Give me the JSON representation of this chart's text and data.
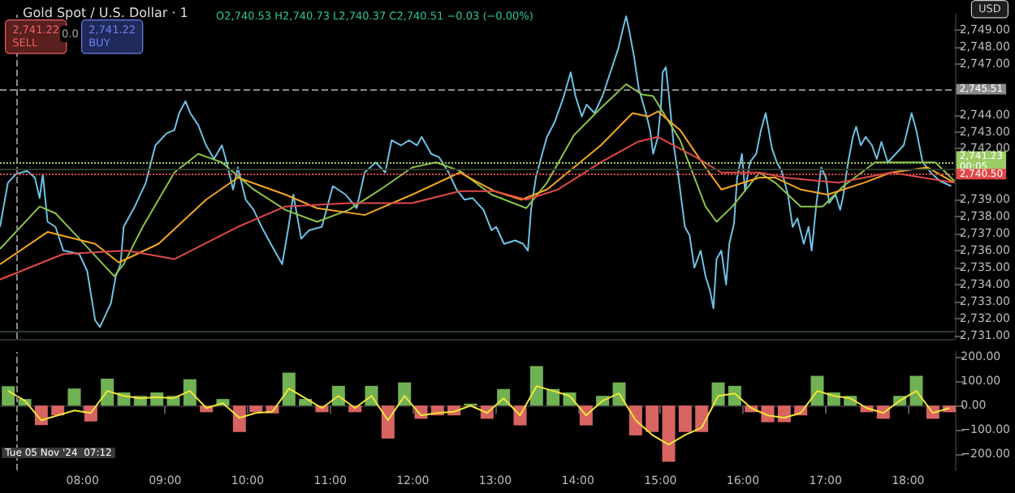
{
  "chart_data": [
    {
      "type": "line",
      "title": "Gold Spot / U.S. Dollar · 1",
      "annotations": [
        "O2,740.53 H2,740.73 L2,740.37 C2,740.51 −0.03 (−0.00%)",
        "2,741.22\nSELL",
        "0.0",
        "2,741.22\nBUY",
        "USD"
      ],
      "xlim": [
        7,
        18.58
      ],
      "ylim": [
        2730.8,
        2749.9
      ],
      "yticks": [
        {
          "value": 2731,
          "label": "2,731.00"
        },
        {
          "value": 2732,
          "label": "2,732.00"
        },
        {
          "value": 2733,
          "label": "2,733.00"
        },
        {
          "value": 2734,
          "label": "2,734.00"
        },
        {
          "value": 2735,
          "label": "2,735.00"
        },
        {
          "value": 2736,
          "label": "2,736.00"
        },
        {
          "value": 2737,
          "label": "2,737.00"
        },
        {
          "value": 2738,
          "label": "2,738.00"
        },
        {
          "value": 2739,
          "label": "2,739.00"
        },
        {
          "value": 2742,
          "label": "2,742.00"
        },
        {
          "value": 2743,
          "label": "2,743.00"
        },
        {
          "value": 2744,
          "label": "2,744.00"
        },
        {
          "value": 2747,
          "label": "2,747.00"
        },
        {
          "value": 2748,
          "label": "2,748.00"
        },
        {
          "value": 2749,
          "label": "2,749.00"
        }
      ],
      "tick_labels": "y",
      "ref_lines": [
        {
          "axis": "y",
          "value": 2745.51,
          "label": "2,745.51",
          "color": "#8a8a8a",
          "line_style": "dashed"
        },
        {
          "axis": "x",
          "value": 7.2,
          "label": null,
          "color": "#8a8a8a",
          "line_style": "dashed"
        },
        {
          "axis": "y",
          "value": 2740.8,
          "label": null,
          "color": "#2c3a2c",
          "line_style": "solid"
        },
        {
          "axis": "y",
          "value": 2731.3,
          "label": null,
          "color": "#2c3a2c",
          "line_style": "solid"
        },
        {
          "axis": "y",
          "value": 2741.23,
          "label": "2,741.23\n00:05",
          "color": "#9ccc65",
          "line_style": "dotted"
        },
        {
          "axis": "y",
          "value": 2740.5,
          "label": "2,740.50",
          "color": "#e04848",
          "line_style": "dotted"
        }
      ],
      "series": [
        {
          "color": "#6ec1e4",
          "x": [
            7.0,
            7.096,
            7.192,
            7.327,
            7.423,
            7.481,
            7.519,
            7.577,
            7.673,
            7.769,
            7.962,
            8.058,
            8.154,
            8.212,
            8.288,
            8.346,
            8.404,
            8.462,
            8.5,
            8.635,
            8.769,
            8.885,
            9.019,
            9.115,
            9.173,
            9.25,
            9.308,
            9.404,
            9.5,
            9.596,
            9.692,
            9.75,
            9.827,
            9.885,
            9.981,
            10.077,
            10.173,
            10.308,
            10.423,
            10.5,
            10.558,
            10.654,
            10.75,
            10.904,
            11.038,
            11.192,
            11.327,
            11.423,
            11.558,
            11.673,
            11.75,
            11.865,
            11.962,
            12.058,
            12.115,
            12.231,
            12.327,
            12.442,
            12.538,
            12.635,
            12.731,
            12.865,
            12.962,
            13.019,
            13.115,
            13.25,
            13.346,
            13.404,
            13.442,
            13.5,
            13.577,
            13.635,
            13.731,
            13.827,
            13.923,
            13.981,
            14.058,
            14.115,
            14.212,
            14.308,
            14.404,
            14.5,
            14.558,
            14.596,
            14.635,
            14.692,
            14.75,
            14.788,
            14.846,
            14.885,
            14.923,
            14.981,
            15.019,
            15.038,
            15.077,
            15.115,
            15.173,
            15.231,
            15.308,
            15.365,
            15.423,
            15.5,
            15.558,
            15.615,
            15.654,
            15.692,
            15.75,
            15.808,
            15.846,
            15.904,
            15.942,
            16.0,
            16.038,
            16.096,
            16.173,
            16.231,
            16.288,
            16.365,
            16.423,
            16.481,
            16.558,
            16.615,
            16.673,
            16.75,
            16.808,
            16.846,
            16.904,
            16.962,
            17.019,
            17.058,
            17.135,
            17.192,
            17.231,
            17.288,
            17.346,
            17.385,
            17.442,
            17.5,
            17.577,
            17.635,
            17.692,
            17.769,
            17.865,
            17.962,
            18.058,
            18.115,
            18.192,
            18.308,
            18.404,
            18.538
          ],
          "values": [
            2737.4,
            2740.0,
            2740.5,
            2740.7,
            2740.3,
            2739.1,
            2740.5,
            2737.7,
            2737.4,
            2736.0,
            2735.8,
            2734.8,
            2731.9,
            2731.5,
            2732.3,
            2732.9,
            2734.5,
            2735.2,
            2737.4,
            2738.6,
            2740.0,
            2742.2,
            2742.9,
            2743.1,
            2744.1,
            2744.8,
            2744.1,
            2743.4,
            2742.2,
            2741.4,
            2742.2,
            2741.2,
            2739.6,
            2740.9,
            2739.0,
            2738.4,
            2737.4,
            2736.2,
            2735.2,
            2737.4,
            2739.3,
            2736.7,
            2737.2,
            2737.4,
            2739.8,
            2739.3,
            2738.5,
            2740.6,
            2741.2,
            2740.6,
            2742.5,
            2742.2,
            2742.5,
            2742.2,
            2742.7,
            2741.7,
            2741.5,
            2740.6,
            2739.6,
            2739.0,
            2739.1,
            2738.4,
            2737.2,
            2737.4,
            2736.4,
            2736.6,
            2736.4,
            2736.0,
            2738.4,
            2740.3,
            2741.7,
            2742.7,
            2743.6,
            2744.9,
            2746.5,
            2745.1,
            2743.9,
            2744.6,
            2744.1,
            2745.1,
            2746.5,
            2747.9,
            2749.1,
            2749.8,
            2748.9,
            2747.4,
            2745.5,
            2744.9,
            2743.9,
            2743.1,
            2741.7,
            2742.7,
            2744.6,
            2746.5,
            2746.8,
            2745.1,
            2742.2,
            2740.3,
            2737.4,
            2736.9,
            2735.0,
            2736.0,
            2734.5,
            2733.6,
            2732.6,
            2735.5,
            2736.0,
            2734.0,
            2736.4,
            2737.6,
            2740.3,
            2741.7,
            2739.5,
            2741.2,
            2741.7,
            2743.1,
            2744.1,
            2742.0,
            2741.2,
            2740.7,
            2739.3,
            2737.4,
            2737.9,
            2736.4,
            2737.4,
            2736.0,
            2738.8,
            2740.9,
            2740.3,
            2738.8,
            2739.3,
            2738.4,
            2739.3,
            2741.2,
            2742.7,
            2743.3,
            2742.2,
            2742.7,
            2742.2,
            2741.4,
            2742.4,
            2741.2,
            2741.7,
            2742.2,
            2744.1,
            2743.1,
            2741.2,
            2740.5,
            2740.1,
            2739.8
          ]
        },
        {
          "color": "#8bc34a",
          "x": [
            7.0,
            7.481,
            7.673,
            7.962,
            8.25,
            8.385,
            8.5,
            8.731,
            9.115,
            9.404,
            9.692,
            10.077,
            10.462,
            10.846,
            11.231,
            11.615,
            12.0,
            12.288,
            12.577,
            12.962,
            13.385,
            13.635,
            13.962,
            14.288,
            14.596,
            14.788,
            14.923,
            15.25,
            15.558,
            15.692,
            15.885,
            16.212,
            16.404,
            16.712,
            16.981,
            17.231,
            17.615,
            17.808,
            18.346,
            18.577
          ],
          "values": [
            2736.1,
            2738.6,
            2738.2,
            2736.7,
            2735.2,
            2734.5,
            2735.2,
            2737.4,
            2740.6,
            2741.7,
            2741.2,
            2739.6,
            2738.4,
            2737.7,
            2738.4,
            2739.6,
            2740.9,
            2741.2,
            2740.7,
            2739.3,
            2738.5,
            2740.0,
            2742.8,
            2744.4,
            2745.8,
            2745.2,
            2745.1,
            2742.5,
            2738.6,
            2737.7,
            2738.6,
            2740.6,
            2740.0,
            2738.6,
            2738.6,
            2739.8,
            2741.2,
            2741.2,
            2741.2,
            2740.1
          ]
        },
        {
          "color": "#f5a623",
          "x": [
            7.0,
            7.577,
            8.154,
            8.442,
            8.923,
            9.5,
            9.885,
            10.462,
            10.846,
            11.423,
            12.0,
            12.577,
            13.0,
            13.327,
            13.635,
            14.288,
            14.673,
            14.865,
            14.981,
            15.25,
            15.558,
            15.75,
            16.212,
            16.404,
            16.712,
            17.038,
            17.481,
            17.808,
            18.25,
            18.577
          ],
          "values": [
            2735.2,
            2737.1,
            2736.4,
            2735.3,
            2736.4,
            2739.0,
            2740.3,
            2739.3,
            2738.5,
            2738.1,
            2739.3,
            2740.6,
            2739.5,
            2739.0,
            2739.6,
            2742.2,
            2744.1,
            2743.9,
            2744.2,
            2743.1,
            2740.9,
            2739.6,
            2740.3,
            2740.3,
            2739.6,
            2739.3,
            2740.0,
            2740.6,
            2740.9,
            2740.0
          ]
        },
        {
          "color": "#e04848",
          "x": [
            7.0,
            7.769,
            8.538,
            9.115,
            9.885,
            10.462,
            11.231,
            12.0,
            12.577,
            13.0,
            13.385,
            13.769,
            14.288,
            14.731,
            14.981,
            15.442,
            15.75,
            16.212,
            16.519,
            17.173,
            17.808,
            18.577
          ],
          "values": [
            2734.3,
            2735.8,
            2736.0,
            2735.5,
            2737.4,
            2738.6,
            2738.8,
            2738.8,
            2739.5,
            2739.5,
            2739.0,
            2739.6,
            2741.2,
            2742.4,
            2742.7,
            2741.5,
            2740.6,
            2740.6,
            2740.3,
            2740.0,
            2740.6,
            2740.0
          ]
        }
      ]
    },
    {
      "type": "bar",
      "xlim": [
        7,
        18.58
      ],
      "ylim": [
        -265,
        220
      ],
      "xticks": [
        {
          "value": 8,
          "label": "08:00"
        },
        {
          "value": 9,
          "label": "09:00"
        },
        {
          "value": 10,
          "label": "10:00"
        },
        {
          "value": 11,
          "label": "11:00"
        },
        {
          "value": 12,
          "label": "12:00"
        },
        {
          "value": 13,
          "label": "13:00"
        },
        {
          "value": 14,
          "label": "14:00"
        },
        {
          "value": 15,
          "label": "15:00"
        },
        {
          "value": 16,
          "label": "16:00"
        },
        {
          "value": 17,
          "label": "17:00"
        },
        {
          "value": 18,
          "label": "18:00"
        }
      ],
      "yticks": [
        {
          "value": 200,
          "label": "200.00"
        },
        {
          "value": 100,
          "label": "100.00"
        },
        {
          "value": 0,
          "label": "0.00"
        },
        {
          "value": -100,
          "label": "−100.00"
        },
        {
          "value": -200,
          "label": "−200.00"
        }
      ],
      "ref_lines": [
        {
          "axis": "x",
          "value": 7.2,
          "label": "Tue 05 Nov '24  07:12",
          "color": "#8a8a8a",
          "line_style": "dashed"
        }
      ],
      "x": [
        7.1,
        7.3,
        7.5,
        7.7,
        7.9,
        8.1,
        8.3,
        8.5,
        8.7,
        8.9,
        9.1,
        9.3,
        9.5,
        9.7,
        9.9,
        10.1,
        10.3,
        10.5,
        10.7,
        10.9,
        11.1,
        11.3,
        11.5,
        11.7,
        11.9,
        12.1,
        12.3,
        12.5,
        12.7,
        12.9,
        13.1,
        13.3,
        13.5,
        13.7,
        13.9,
        14.1,
        14.3,
        14.5,
        14.7,
        14.9,
        15.1,
        15.3,
        15.5,
        15.7,
        15.9,
        16.1,
        16.3,
        16.5,
        16.7,
        16.9,
        17.1,
        17.3,
        17.5,
        17.7,
        17.9,
        18.1,
        18.3,
        18.5
      ],
      "series": [
        {
          "values": [
            80,
            27,
            -80,
            -40,
            70,
            -65,
            110,
            54,
            40,
            54,
            40,
            108,
            -27,
            27,
            -108,
            -27,
            -32,
            135,
            27,
            -27,
            81,
            -27,
            81,
            -135,
            95,
            -54,
            -40,
            -40,
            8,
            -54,
            68,
            -81,
            162,
            68,
            54,
            -81,
            40,
            95,
            -122,
            -108,
            -230,
            -108,
            -108,
            95,
            81,
            -27,
            -68,
            -68,
            -40,
            122,
            54,
            40,
            -27,
            -54,
            40,
            122,
            -54,
            -27
          ],
          "colors": [
            "#7cc45c",
            "#7cc45c",
            "#ef6f6c",
            "#ef6f6c",
            "#7cc45c",
            "#ef6f6c",
            "#7cc45c",
            "#7cc45c",
            "#7cc45c",
            "#7cc45c",
            "#7cc45c",
            "#7cc45c",
            "#ef6f6c",
            "#7cc45c",
            "#ef6f6c",
            "#ef6f6c",
            "#ef6f6c",
            "#7cc45c",
            "#7cc45c",
            "#ef6f6c",
            "#7cc45c",
            "#ef6f6c",
            "#7cc45c",
            "#ef6f6c",
            "#7cc45c",
            "#ef6f6c",
            "#ef6f6c",
            "#ef6f6c",
            "#7cc45c",
            "#ef6f6c",
            "#7cc45c",
            "#ef6f6c",
            "#7cc45c",
            "#7cc45c",
            "#7cc45c",
            "#ef6f6c",
            "#7cc45c",
            "#7cc45c",
            "#ef6f6c",
            "#ef6f6c",
            "#ef6f6c",
            "#ef6f6c",
            "#ef6f6c",
            "#7cc45c",
            "#7cc45c",
            "#ef6f6c",
            "#ef6f6c",
            "#ef6f6c",
            "#ef6f6c",
            "#7cc45c",
            "#7cc45c",
            "#7cc45c",
            "#ef6f6c",
            "#ef6f6c",
            "#7cc45c",
            "#7cc45c",
            "#ef6f6c",
            "#ef6f6c"
          ]
        },
        {
          "type": "line",
          "color": "#f2e53a",
          "values": [
            60,
            20,
            -60,
            -40,
            -20,
            -30,
            60,
            40,
            30,
            35,
            30,
            60,
            -10,
            10,
            -50,
            -30,
            -25,
            70,
            30,
            -10,
            40,
            -10,
            40,
            -60,
            40,
            -40,
            -30,
            -25,
            0,
            -30,
            30,
            -40,
            80,
            60,
            40,
            -40,
            20,
            50,
            -60,
            -120,
            -160,
            -120,
            -90,
            40,
            50,
            -10,
            -40,
            -50,
            -30,
            60,
            40,
            30,
            -10,
            -30,
            20,
            60,
            -30,
            -10
          ]
        }
      ]
    }
  ]
}
